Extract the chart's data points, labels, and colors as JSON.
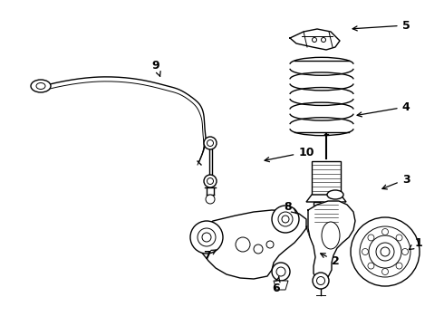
{
  "bg_color": "#ffffff",
  "line_color": "#000000",
  "label_fontsize": 9,
  "figsize": [
    4.9,
    3.6
  ],
  "dpi": 100,
  "labels_info": [
    [
      1,
      462,
      268,
      448,
      278
    ],
    [
      2,
      370,
      288,
      350,
      278
    ],
    [
      3,
      448,
      198,
      418,
      210
    ],
    [
      4,
      448,
      118,
      390,
      128
    ],
    [
      5,
      448,
      28,
      385,
      32
    ],
    [
      6,
      305,
      318,
      308,
      305
    ],
    [
      7,
      228,
      282,
      242,
      274
    ],
    [
      8,
      318,
      228,
      330,
      238
    ],
    [
      9,
      172,
      72,
      178,
      88
    ],
    [
      10,
      338,
      168,
      288,
      178
    ]
  ]
}
